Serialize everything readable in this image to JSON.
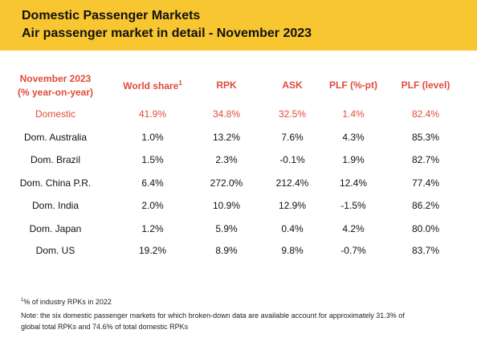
{
  "header": {
    "title": "Domestic Passenger Markets",
    "subtitle": "Air passenger market in detail - November 2023",
    "bg_color": "#f8c630"
  },
  "table": {
    "period_label_line1": "November 2023",
    "period_label_line2": "(% year-on-year)",
    "columns": [
      "World share",
      "RPK",
      "ASK",
      "PLF (%-pt)",
      "PLF (level)"
    ],
    "world_share_footnote_mark": "1",
    "accent_color": "#e04b3c",
    "rows": [
      {
        "market": "Domestic",
        "world_share": "41.9%",
        "rpk": "34.8%",
        "ask": "32.5%",
        "plf_pt": "1.4%",
        "plf_level": "82.4%"
      },
      {
        "market": "Dom. Australia",
        "world_share": "1.0%",
        "rpk": "13.2%",
        "ask": "7.6%",
        "plf_pt": "4.3%",
        "plf_level": "85.3%"
      },
      {
        "market": "Dom. Brazil",
        "world_share": "1.5%",
        "rpk": "2.3%",
        "ask": "-0.1%",
        "plf_pt": "1.9%",
        "plf_level": "82.7%"
      },
      {
        "market": "Dom. China P.R.",
        "world_share": "6.4%",
        "rpk": "272.0%",
        "ask": "212.4%",
        "plf_pt": "12.4%",
        "plf_level": "77.4%"
      },
      {
        "market": "Dom. India",
        "world_share": "2.0%",
        "rpk": "10.9%",
        "ask": "12.9%",
        "plf_pt": "-1.5%",
        "plf_level": "86.2%"
      },
      {
        "market": "Dom. Japan",
        "world_share": "1.2%",
        "rpk": "5.9%",
        "ask": "0.4%",
        "plf_pt": "4.2%",
        "plf_level": "80.0%"
      },
      {
        "market": "Dom. US",
        "world_share": "19.2%",
        "rpk": "8.9%",
        "ask": "9.8%",
        "plf_pt": "-0.7%",
        "plf_level": "83.7%"
      }
    ]
  },
  "footnotes": {
    "mark": "1",
    "note1": "% of industry RPKs in 2022",
    "note2_line1": "Note: the six domestic passenger markets for which broken-down data are available account for approximately 31.3% of",
    "note2_line2": "global total RPKs and 74.6% of total domestic RPKs"
  }
}
